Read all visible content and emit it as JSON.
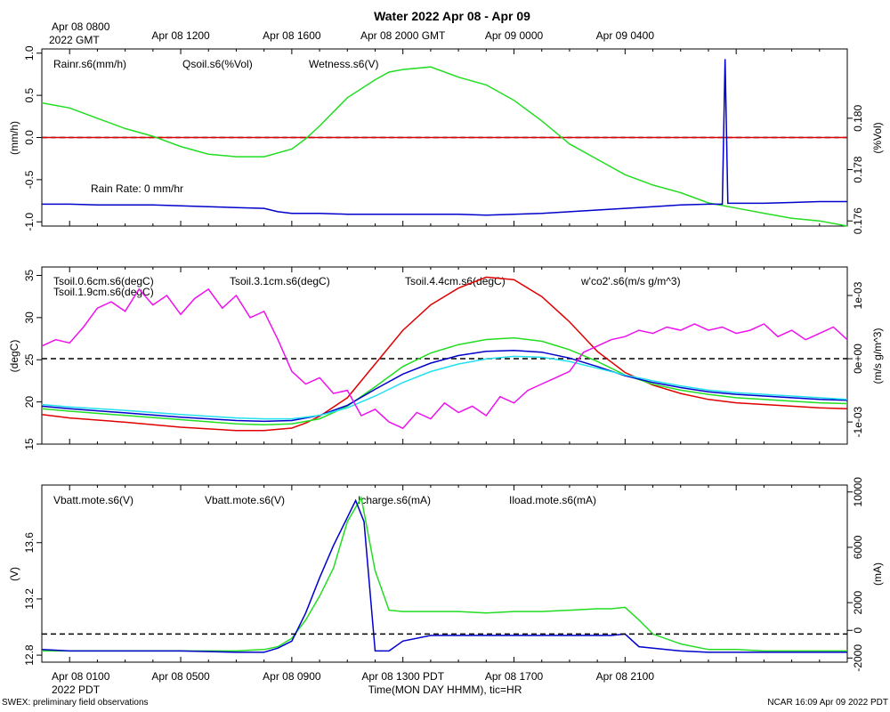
{
  "colors": {
    "red": "#e00000",
    "green": "#22dd22",
    "blue": "#0000cc",
    "cyan": "#22e0ee",
    "magenta": "#ee11ee",
    "black": "#000000"
  },
  "chart_data": [
    {
      "type": "line",
      "title": "Water 2022 Apr 08 - Apr 09",
      "top_axis": {
        "label_main": "Apr 08 0800",
        "label_sub": "2022 GMT",
        "ticks": [
          "Apr 08 1200",
          "Apr 08 1600",
          "Apr 08 2000 GMT",
          "Apr 09 0000",
          "Apr 09 0400"
        ]
      },
      "ylabel_left": "(mm/h)",
      "ylabel_right": "(%Vol)",
      "ylim_left": [
        -1.05,
        1.05
      ],
      "yticks_left": [
        "1.0",
        "0.5",
        "0.0",
        "-0.5",
        "-1.0"
      ],
      "ylim_right": [
        0.1758,
        0.1827
      ],
      "yticks_right": [
        "0.180",
        "0.178",
        "0.176"
      ],
      "legend": [
        "Rainr.s6(mm/h)",
        "Qsoil.s6(%Vol)",
        "Wetness.s6(V)"
      ],
      "annotation": "Rain Rate: 0 mm/hr",
      "x_hours_range": [
        -1,
        28
      ],
      "series": [
        {
          "name": "Rainr.s6(mm/h)",
          "axis": "left",
          "color": "red",
          "x": [
            -1,
            28
          ],
          "values": [
            0,
            0
          ]
        },
        {
          "name": "Qsoil.s6(%Vol)",
          "axis": "right",
          "color": "green",
          "x": [
            -1,
            0,
            1,
            2,
            3,
            4,
            5,
            6,
            7,
            8,
            8.5,
            9,
            10,
            11,
            11.5,
            12,
            13,
            14,
            15,
            16,
            17,
            18,
            19,
            20,
            21,
            22,
            23,
            24,
            25,
            26,
            27,
            28
          ],
          "values": [
            0.1806,
            0.1804,
            0.18,
            0.1796,
            0.1793,
            0.1789,
            0.1786,
            0.1785,
            0.1785,
            0.1788,
            0.1792,
            0.1797,
            0.1808,
            0.1815,
            0.1818,
            0.1819,
            0.182,
            0.1816,
            0.1813,
            0.1807,
            0.1799,
            0.179,
            0.1784,
            0.1778,
            0.1774,
            0.1771,
            0.1767,
            0.1765,
            0.1763,
            0.1761,
            0.176,
            0.1758
          ]
        },
        {
          "name": "Wetness.s6(V)",
          "axis": "left",
          "color": "blue",
          "x": [
            -1,
            0,
            1,
            2,
            3,
            4,
            5,
            6,
            7,
            7.5,
            8,
            9,
            10,
            11,
            12,
            13,
            14,
            15,
            16,
            17,
            18,
            19,
            20,
            21,
            22,
            23,
            23.5,
            23.6,
            23.7,
            23.8,
            24,
            25,
            26,
            27,
            28
          ],
          "values": [
            -0.79,
            -0.79,
            -0.8,
            -0.8,
            -0.8,
            -0.81,
            -0.82,
            -0.83,
            -0.84,
            -0.88,
            -0.9,
            -0.9,
            -0.91,
            -0.91,
            -0.91,
            -0.91,
            -0.91,
            -0.92,
            -0.91,
            -0.9,
            -0.88,
            -0.86,
            -0.84,
            -0.82,
            -0.8,
            -0.79,
            -0.79,
            0.93,
            -0.78,
            -0.78,
            -0.78,
            -0.78,
            -0.77,
            -0.76,
            -0.76
          ]
        }
      ]
    },
    {
      "type": "line",
      "ylabel_left": "(degC)",
      "ylabel_right": "(m/s g/m^3)",
      "ylim_left": [
        15,
        36
      ],
      "yticks_left": [
        "35",
        "30",
        "25",
        "20",
        "15"
      ],
      "ylim_right": [
        -0.00135,
        0.00145
      ],
      "yticks_right": [
        "1e-03",
        "0e+00",
        "-1e-03"
      ],
      "legend": [
        "Tsoil.0.6cm.s6(degC)",
        "Tsoil.1.9cm.s6(degC)",
        "Tsoil.3.1cm.s6(degC)",
        "Tsoil.4.4cm.s6(degC)",
        "w'co2'.s6(m/s g/m^3)"
      ],
      "x_hours_range": [
        -1,
        28
      ],
      "series": [
        {
          "name": "Tsoil.0.6cm.s6(degC)",
          "axis": "left",
          "color": "red",
          "x": [
            -1,
            0,
            2,
            4,
            6,
            7,
            8,
            8.5,
            9,
            10,
            11,
            12,
            13,
            14,
            15,
            16,
            17,
            18,
            19,
            20,
            21,
            22,
            23,
            24,
            25,
            26,
            27,
            28
          ],
          "values": [
            18.5,
            18.1,
            17.6,
            17.0,
            16.6,
            16.6,
            16.9,
            17.5,
            18.3,
            20.5,
            24.5,
            28.5,
            31.5,
            33.5,
            34.8,
            34.5,
            32.5,
            29.5,
            26.0,
            23.5,
            22.0,
            21.0,
            20.3,
            19.9,
            19.7,
            19.5,
            19.3,
            19.2
          ]
        },
        {
          "name": "Tsoil.1.9cm.s6(degC)",
          "axis": "left",
          "color": "green",
          "x": [
            -1,
            0,
            2,
            4,
            6,
            7,
            8,
            9,
            10,
            11,
            12,
            13,
            14,
            15,
            16,
            17,
            18,
            19,
            20,
            21,
            22,
            23,
            24,
            25,
            26,
            27,
            28
          ],
          "values": [
            19.2,
            18.9,
            18.4,
            17.9,
            17.4,
            17.3,
            17.4,
            18.0,
            19.5,
            21.8,
            24.2,
            25.8,
            26.8,
            27.4,
            27.6,
            27.2,
            26.2,
            24.8,
            23.2,
            22.1,
            21.4,
            20.9,
            20.5,
            20.3,
            20.1,
            19.9,
            19.8
          ]
        },
        {
          "name": "Tsoil.3.1cm.s6(degC)",
          "axis": "left",
          "color": "blue",
          "x": [
            -1,
            0,
            2,
            4,
            6,
            7,
            8,
            9,
            10,
            11,
            12,
            13,
            14,
            15,
            16,
            17,
            18,
            19,
            20,
            21,
            22,
            23,
            24,
            25,
            26,
            27,
            28
          ],
          "values": [
            19.5,
            19.2,
            18.7,
            18.2,
            17.8,
            17.7,
            17.8,
            18.4,
            19.6,
            21.5,
            23.3,
            24.6,
            25.5,
            26.0,
            26.1,
            25.9,
            25.2,
            24.2,
            23.1,
            22.3,
            21.7,
            21.2,
            20.9,
            20.7,
            20.5,
            20.3,
            20.2
          ]
        },
        {
          "name": "Tsoil.4.4cm.s6(degC)",
          "axis": "left",
          "color": "cyan",
          "x": [
            -1,
            0,
            2,
            4,
            6,
            7,
            8,
            9,
            10,
            11,
            12,
            13,
            14,
            15,
            16,
            17,
            18,
            19,
            20,
            21,
            22,
            23,
            24,
            25,
            26,
            27,
            28
          ],
          "values": [
            19.7,
            19.4,
            19.0,
            18.5,
            18.1,
            18.0,
            18.0,
            18.4,
            19.3,
            20.7,
            22.3,
            23.6,
            24.5,
            25.1,
            25.4,
            25.3,
            24.8,
            24.0,
            23.2,
            22.5,
            21.9,
            21.4,
            21.1,
            20.9,
            20.7,
            20.5,
            20.3
          ]
        },
        {
          "name": "w'co2'.s6(m/s g/m^3)",
          "axis": "right",
          "color": "magenta",
          "x": [
            -1,
            -0.5,
            0,
            0.5,
            1,
            1.5,
            2,
            2.5,
            3,
            3.5,
            4,
            4.5,
            5,
            5.5,
            6,
            6.5,
            7,
            7.5,
            8,
            8.5,
            9,
            9.5,
            10,
            10.5,
            11,
            11.5,
            12,
            12.5,
            13,
            13.5,
            14,
            14.5,
            15,
            15.5,
            16,
            16.5,
            17,
            17.5,
            18,
            18.5,
            19,
            19.5,
            20,
            20.5,
            21,
            21.5,
            22,
            22.5,
            23,
            23.5,
            24,
            24.5,
            25,
            25.5,
            26,
            26.5,
            27,
            27.5,
            28
          ],
          "values": [
            0.0002,
            0.0003,
            0.00025,
            0.0005,
            0.0008,
            0.0009,
            0.00075,
            0.0011,
            0.00085,
            0.001,
            0.0007,
            0.00095,
            0.0011,
            0.0008,
            0.001,
            0.00065,
            0.00075,
            0.0003,
            -0.0002,
            -0.0004,
            -0.0003,
            -0.00055,
            -0.0005,
            -0.0009,
            -0.0008,
            -0.001,
            -0.0011,
            -0.00085,
            -0.00095,
            -0.0007,
            -0.00085,
            -0.00075,
            -0.0009,
            -0.0006,
            -0.0007,
            -0.0005,
            -0.0004,
            -0.0003,
            -0.0002,
            0.0001,
            0.0002,
            0.0003,
            0.00035,
            0.00045,
            0.0004,
            0.0005,
            0.00045,
            0.00055,
            0.00045,
            0.0005,
            0.0004,
            0.00045,
            0.00055,
            0.00035,
            0.00045,
            0.0003,
            0.0004,
            0.0005,
            0.0003
          ]
        }
      ]
    },
    {
      "type": "line",
      "ylabel_left": "(V)",
      "ylabel_right": "(mA)",
      "ylim_left": [
        12.75,
        14.01
      ],
      "yticks_left": [
        "13.6",
        "13.2",
        "12.8"
      ],
      "ylim_right": [
        -2300,
        10500
      ],
      "yticks_right": [
        "10000",
        "6000",
        "2000",
        "0",
        "-2000"
      ],
      "legend": [
        "Vbatt.mote.s6(V)",
        "Vbatt.mote.s6(V)",
        "Icharge.s6(mA)",
        "Iload.mote.s6(mA)"
      ],
      "bottom_axis": {
        "label_main": "Apr 08 0100",
        "label_sub": "2022 PDT",
        "ticks": [
          "Apr 08 0500",
          "Apr 08 0900",
          "Apr 08 1300 PDT",
          "Apr 08 1700",
          "Apr 08 2100"
        ]
      },
      "xlabel": "Time(MON DAY HHMM), tic=HR",
      "x_hours_range": [
        -1,
        28
      ],
      "series": [
        {
          "name": "Vbatt.mote.s6(V)",
          "axis": "left",
          "color": "green",
          "x": [
            -1,
            0,
            2,
            4,
            6,
            7,
            7.5,
            8,
            8.5,
            9,
            9.5,
            10,
            10.5,
            11,
            11.5,
            12,
            13,
            14,
            15,
            16,
            17,
            18,
            19,
            19.5,
            20,
            20.5,
            21,
            22,
            23,
            24,
            25,
            26,
            27,
            28
          ],
          "values": [
            12.83,
            12.83,
            12.83,
            12.83,
            12.83,
            12.84,
            12.86,
            12.92,
            13.05,
            13.22,
            13.42,
            13.75,
            13.92,
            13.4,
            13.12,
            13.11,
            13.11,
            13.11,
            13.1,
            13.11,
            13.11,
            13.12,
            13.13,
            13.13,
            13.14,
            13.05,
            12.95,
            12.88,
            12.84,
            12.84,
            12.83,
            12.83,
            12.83,
            12.83
          ]
        },
        {
          "name": "Icharge.s6(mA)",
          "axis": "left",
          "color": "blue",
          "x": [
            -1,
            0,
            2,
            4,
            6,
            7,
            7.5,
            8,
            8.5,
            9,
            9.5,
            10,
            10.3,
            10.6,
            11,
            11.5,
            12,
            13,
            14,
            15,
            16,
            17,
            18,
            19,
            19.5,
            20,
            20.5,
            21,
            22,
            23,
            24,
            25,
            26,
            27,
            28
          ],
          "values": [
            12.84,
            12.83,
            12.83,
            12.83,
            12.82,
            12.82,
            12.85,
            12.9,
            13.1,
            13.35,
            13.58,
            13.78,
            13.9,
            13.75,
            12.83,
            12.83,
            12.9,
            12.94,
            12.94,
            12.94,
            12.94,
            12.94,
            12.94,
            12.94,
            12.94,
            12.95,
            12.86,
            12.85,
            12.83,
            12.82,
            12.82,
            12.82,
            12.82,
            12.82,
            12.82
          ]
        },
        {
          "name": "Zero",
          "axis": "left",
          "color": "black",
          "dashed": true,
          "x": [
            -1,
            28
          ],
          "values": [
            12.95,
            12.95
          ]
        }
      ]
    }
  ],
  "footer": {
    "left": "SWEX: preliminary field observations",
    "right": "NCAR 16:09 Apr 09 2022 PDT"
  }
}
